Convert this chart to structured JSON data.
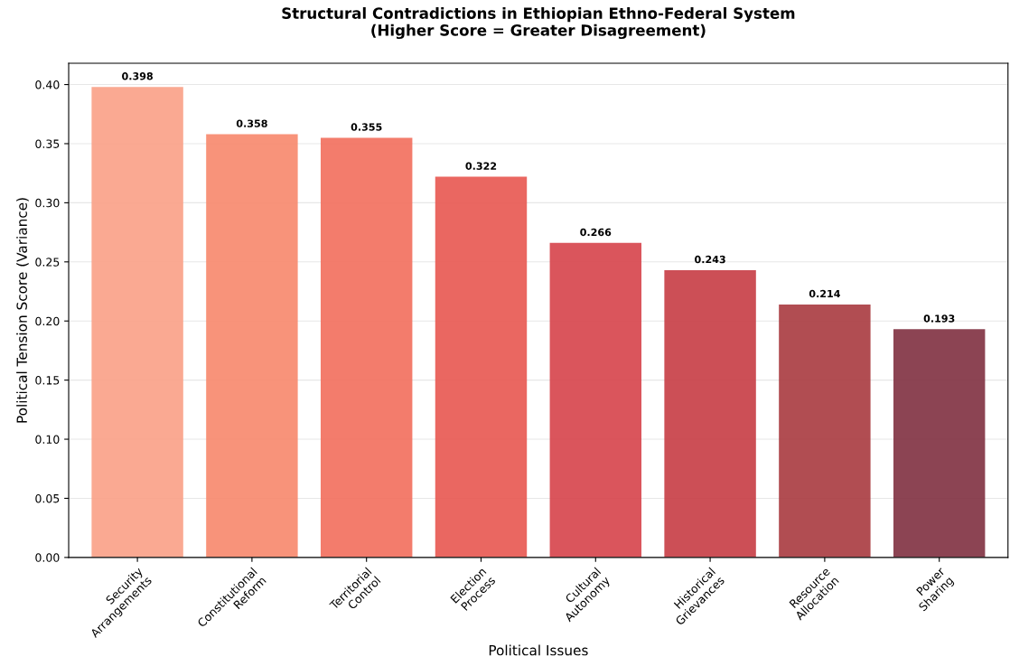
{
  "chart_data": {
    "type": "bar",
    "title": "Structural Contradictions in Ethiopian Ethno-Federal System\n(Higher Score = Greater Disagreement)",
    "xlabel": "Political Issues",
    "ylabel": "Political Tension Score (Variance)",
    "categories": [
      "Security\nArrangements",
      "Constitutional\nReform",
      "Territorial\nControl",
      "Election\nProcess",
      "Cultural\nAutonomy",
      "Historical\nGrievances",
      "Resource\nAllocation",
      "Power\nSharing"
    ],
    "values": [
      0.398,
      0.358,
      0.355,
      0.322,
      0.266,
      0.243,
      0.214,
      0.193
    ],
    "colors": [
      "#f9a086",
      "#f7876c",
      "#f26e5c",
      "#e85650",
      "#d6434a",
      "#c63c44",
      "#a83a3f",
      "#7f3040"
    ],
    "ylim": [
      0,
      0.418
    ],
    "yticks": [
      {
        "value": 0,
        "label": "0.00"
      },
      {
        "value": 0.05,
        "label": "0.05"
      },
      {
        "value": 0.1,
        "label": "0.10"
      },
      {
        "value": 0.15,
        "label": "0.15"
      },
      {
        "value": 0.2,
        "label": "0.20"
      },
      {
        "value": 0.25,
        "label": "0.25"
      },
      {
        "value": 0.3,
        "label": "0.30"
      },
      {
        "value": 0.35,
        "label": "0.35"
      },
      {
        "value": 0.4,
        "label": "0.40"
      }
    ],
    "grid": "y",
    "data_labels": true
  }
}
